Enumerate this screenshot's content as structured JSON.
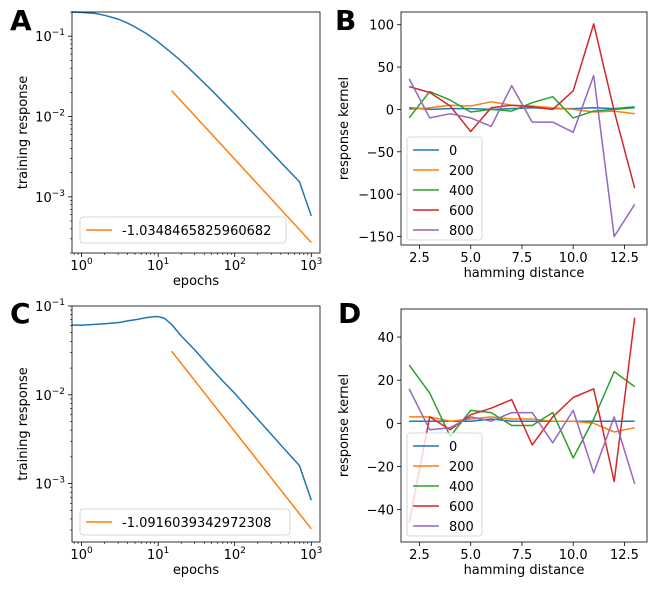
{
  "figure": {
    "panel_letters": [
      "A",
      "B",
      "C",
      "D"
    ]
  },
  "chart_data": [
    {
      "panel": "A",
      "type": "line",
      "xscale": "log",
      "yscale": "log",
      "xlim": [
        0.75,
        1300
      ],
      "ylim": [
        0.0002,
        0.2
      ],
      "xlabel": "epochs",
      "ylabel": "training response",
      "xticks": [
        {
          "v": 1,
          "base": "10",
          "exp": "0"
        },
        {
          "v": 10,
          "base": "10",
          "exp": "1"
        },
        {
          "v": 100,
          "base": "10",
          "exp": "2"
        },
        {
          "v": 1000,
          "base": "10",
          "exp": "3"
        }
      ],
      "yticks": [
        {
          "v": 0.001,
          "base": "10",
          "exp": "−3"
        },
        {
          "v": 0.01,
          "base": "10",
          "exp": "−2"
        },
        {
          "v": 0.1,
          "base": "10",
          "exp": "−1"
        }
      ],
      "legend_position": "lower-left",
      "series": [
        {
          "name": "training response",
          "color": "#1f77b4",
          "in_legend": false,
          "x": [
            0.75,
            1,
            1.5,
            2,
            3,
            4,
            5,
            7,
            10,
            15,
            20,
            30,
            50,
            70,
            100,
            150,
            200,
            300,
            500,
            700,
            1000
          ],
          "y": [
            0.2,
            0.198,
            0.192,
            0.182,
            0.163,
            0.145,
            0.13,
            0.108,
            0.085,
            0.062,
            0.049,
            0.034,
            0.0212,
            0.0153,
            0.0108,
            0.0072,
            0.0054,
            0.0036,
            0.00215,
            0.00155,
            0.00058
          ]
        },
        {
          "name": "-1.0348465825960682",
          "color": "#ff7f0e",
          "in_legend": true,
          "x": [
            15,
            1000
          ],
          "y": [
            0.021,
            0.00027
          ]
        }
      ]
    },
    {
      "panel": "B",
      "type": "line",
      "xlim": [
        1.6,
        13.6
      ],
      "ylim": [
        -160,
        115
      ],
      "xlabel": "hamming distance",
      "ylabel": "response kernel",
      "xticks": [
        {
          "v": 2.5,
          "label": "2.5"
        },
        {
          "v": 5,
          "label": "5.0"
        },
        {
          "v": 7.5,
          "label": "7.5"
        },
        {
          "v": 10,
          "label": "10.0"
        },
        {
          "v": 12.5,
          "label": "12.5"
        }
      ],
      "yticks": [
        {
          "v": -150,
          "label": "−150"
        },
        {
          "v": -100,
          "label": "−100"
        },
        {
          "v": -50,
          "label": "−50"
        },
        {
          "v": 0,
          "label": "0"
        },
        {
          "v": 50,
          "label": "50"
        },
        {
          "v": 100,
          "label": "100"
        }
      ],
      "legend_position": "lower-left",
      "x": [
        2,
        3,
        4,
        5,
        6,
        7,
        8,
        9,
        10,
        11,
        12,
        13
      ],
      "series": [
        {
          "name": "0",
          "color": "#1f77b4",
          "values": [
            2,
            0,
            1,
            1,
            0,
            1,
            2,
            1,
            1,
            2,
            1,
            3
          ]
        },
        {
          "name": "200",
          "color": "#ff7f0e",
          "values": [
            0,
            2,
            5,
            4,
            9,
            5,
            4,
            2,
            0,
            -3,
            -2,
            -5
          ]
        },
        {
          "name": "400",
          "color": "#2ca02c",
          "values": [
            -10,
            21,
            11,
            -3,
            0,
            -2,
            8,
            15,
            -10,
            -2,
            0,
            2
          ]
        },
        {
          "name": "600",
          "color": "#d62728",
          "values": [
            27,
            20,
            4,
            -26,
            2,
            5,
            3,
            0,
            22,
            101,
            -2,
            -93
          ]
        },
        {
          "name": "800",
          "color": "#9467bd",
          "values": [
            36,
            -10,
            -5,
            -10,
            -20,
            28,
            -15,
            -15,
            -27,
            40,
            -150,
            -112
          ]
        }
      ]
    },
    {
      "panel": "C",
      "type": "line",
      "xscale": "log",
      "yscale": "log",
      "xlim": [
        0.75,
        1300
      ],
      "ylim": [
        0.00022,
        0.1
      ],
      "xlabel": "epochs",
      "ylabel": "training response",
      "xticks": [
        {
          "v": 1,
          "base": "10",
          "exp": "0"
        },
        {
          "v": 10,
          "base": "10",
          "exp": "1"
        },
        {
          "v": 100,
          "base": "10",
          "exp": "2"
        },
        {
          "v": 1000,
          "base": "10",
          "exp": "3"
        }
      ],
      "yticks": [
        {
          "v": 0.001,
          "base": "10",
          "exp": "−3"
        },
        {
          "v": 0.01,
          "base": "10",
          "exp": "−2"
        },
        {
          "v": 0.1,
          "base": "10",
          "exp": "−1"
        }
      ],
      "legend_position": "lower-left",
      "series": [
        {
          "name": "training response",
          "color": "#1f77b4",
          "in_legend": false,
          "x": [
            0.75,
            1,
            1.5,
            2,
            3,
            4,
            5,
            7,
            9,
            10,
            12,
            15,
            20,
            30,
            50,
            70,
            100,
            150,
            200,
            300,
            500,
            700,
            1000
          ],
          "y": [
            0.061,
            0.061,
            0.062,
            0.063,
            0.065,
            0.068,
            0.07,
            0.074,
            0.076,
            0.076,
            0.073,
            0.062,
            0.046,
            0.032,
            0.0195,
            0.0143,
            0.0104,
            0.007,
            0.0053,
            0.0036,
            0.0022,
            0.0016,
            0.00065
          ]
        },
        {
          "name": "-1.0916039342972308",
          "color": "#ff7f0e",
          "in_legend": true,
          "x": [
            15,
            1000
          ],
          "y": [
            0.031,
            0.00031
          ]
        }
      ]
    },
    {
      "panel": "D",
      "type": "line",
      "xlim": [
        1.6,
        13.6
      ],
      "ylim": [
        -55,
        53
      ],
      "xlabel": "hamming distance",
      "ylabel": "response kernel",
      "xticks": [
        {
          "v": 2.5,
          "label": "2.5"
        },
        {
          "v": 5,
          "label": "5.0"
        },
        {
          "v": 7.5,
          "label": "7.5"
        },
        {
          "v": 10,
          "label": "10.0"
        },
        {
          "v": 12.5,
          "label": "12.5"
        }
      ],
      "yticks": [
        {
          "v": -40,
          "label": "−40"
        },
        {
          "v": -20,
          "label": "−20"
        },
        {
          "v": 0,
          "label": "0"
        },
        {
          "v": 20,
          "label": "20"
        },
        {
          "v": 40,
          "label": "40"
        }
      ],
      "legend_position": "lower-left",
      "x": [
        2,
        3,
        4,
        5,
        6,
        7,
        8,
        9,
        10,
        11,
        12,
        13
      ],
      "series": [
        {
          "name": "0",
          "color": "#1f77b4",
          "values": [
            1,
            1,
            1,
            1,
            2,
            1,
            1,
            1,
            1,
            1,
            1,
            1
          ]
        },
        {
          "name": "200",
          "color": "#ff7f0e",
          "values": [
            3,
            3,
            1,
            2,
            3,
            2,
            2,
            1,
            1,
            0,
            -4,
            -2
          ]
        },
        {
          "name": "400",
          "color": "#2ca02c",
          "values": [
            27,
            14,
            -6,
            6,
            5,
            -1,
            -1,
            5,
            -16,
            2,
            24,
            17
          ]
        },
        {
          "name": "600",
          "color": "#d62728",
          "values": [
            -46,
            3,
            -3,
            4,
            7,
            11,
            -10,
            3,
            12,
            16,
            -27,
            49
          ]
        },
        {
          "name": "800",
          "color": "#9467bd",
          "values": [
            16,
            -3,
            -2,
            3,
            1,
            5,
            5,
            -9,
            6,
            -23,
            3,
            -28
          ]
        }
      ]
    }
  ]
}
